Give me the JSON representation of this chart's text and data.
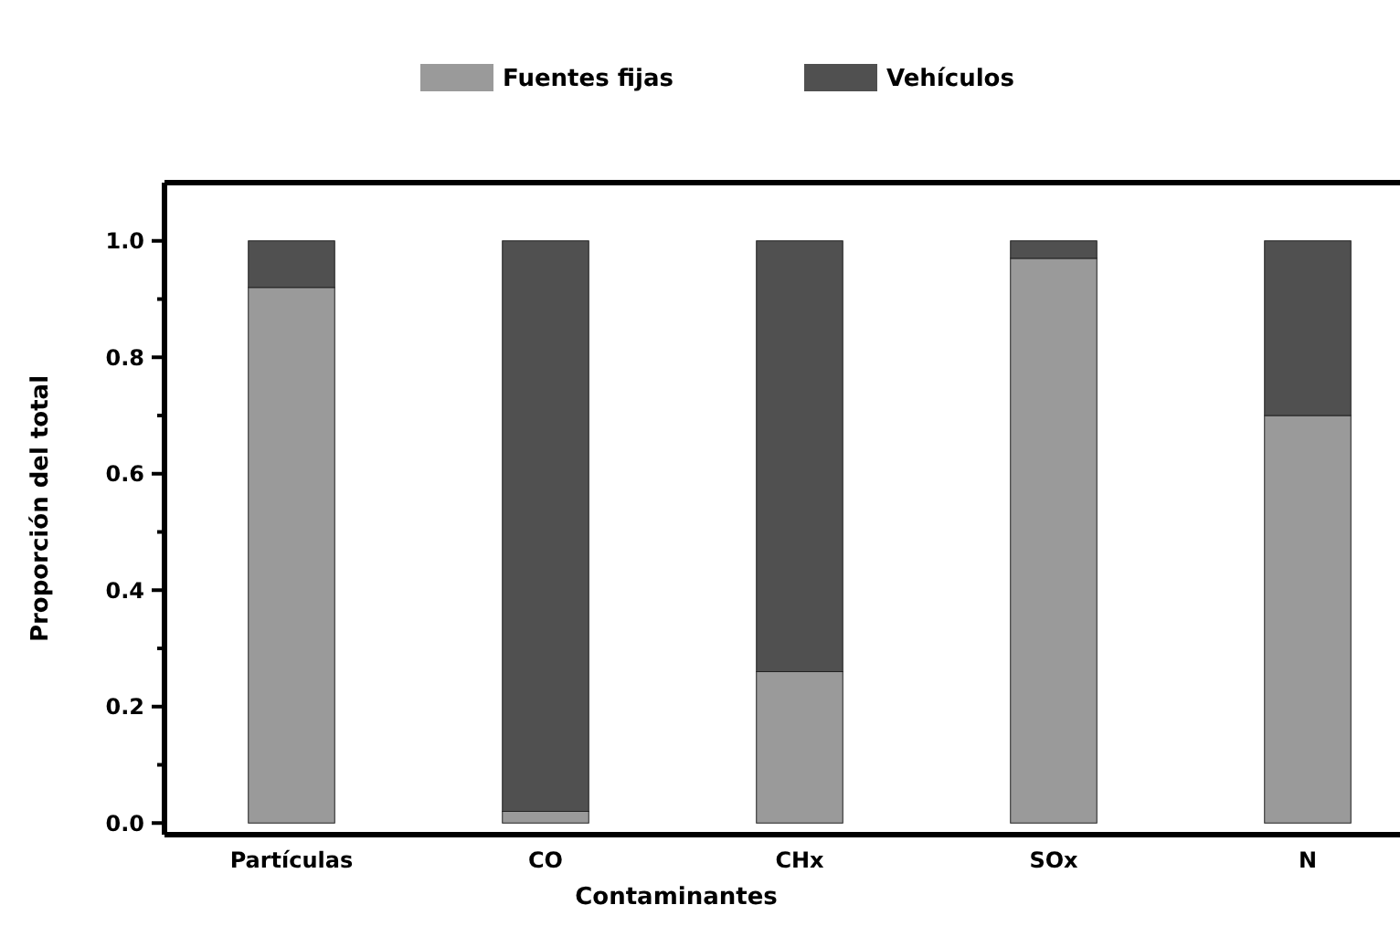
{
  "chart_data": {
    "type": "bar",
    "stacked": true,
    "xlabel": "Contaminantes",
    "ylabel": "Proporción del total",
    "categories": [
      "Partículas",
      "CO",
      "CHx",
      "SOx",
      "N"
    ],
    "series": [
      {
        "name": "Fuentes fijas",
        "color": "#9a9a9a",
        "values": [
          0.92,
          0.02,
          0.26,
          0.97,
          0.7
        ]
      },
      {
        "name": "Vehículos",
        "color": "#505050",
        "values": [
          0.08,
          0.98,
          0.74,
          0.03,
          0.3
        ]
      }
    ],
    "ylim": [
      -0.02,
      1.1
    ],
    "yticks": [
      {
        "value": 0,
        "label": "0.0"
      },
      {
        "value": 0.2,
        "label": "0.2"
      },
      {
        "value": 0.4,
        "label": "0.4"
      },
      {
        "value": 0.6,
        "label": "0.6"
      },
      {
        "value": 0.8,
        "label": "0.8"
      },
      {
        "value": 1,
        "label": "1.0"
      }
    ],
    "grid": false,
    "legend": "top"
  }
}
